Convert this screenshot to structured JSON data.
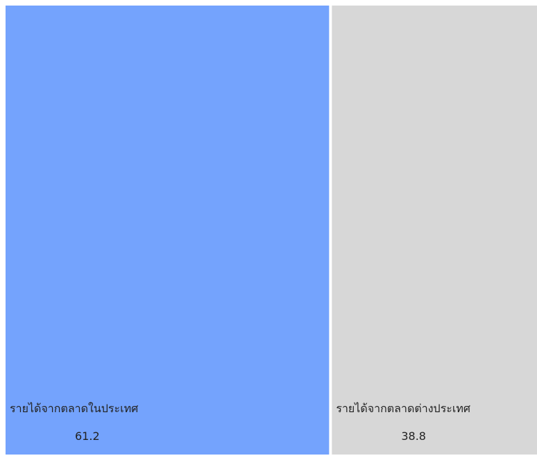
{
  "chart_data": {
    "type": "treemap",
    "title": "",
    "series": [
      {
        "label": "รายได้จากตลาดในประเทศ",
        "value": 61.2,
        "value_label": "61.2",
        "color": "#74a3fd"
      },
      {
        "label": "รายได้จากตลาดต่างประเทศ",
        "value": 38.8,
        "value_label": "38.8",
        "color": "#d7d7d7"
      }
    ]
  }
}
